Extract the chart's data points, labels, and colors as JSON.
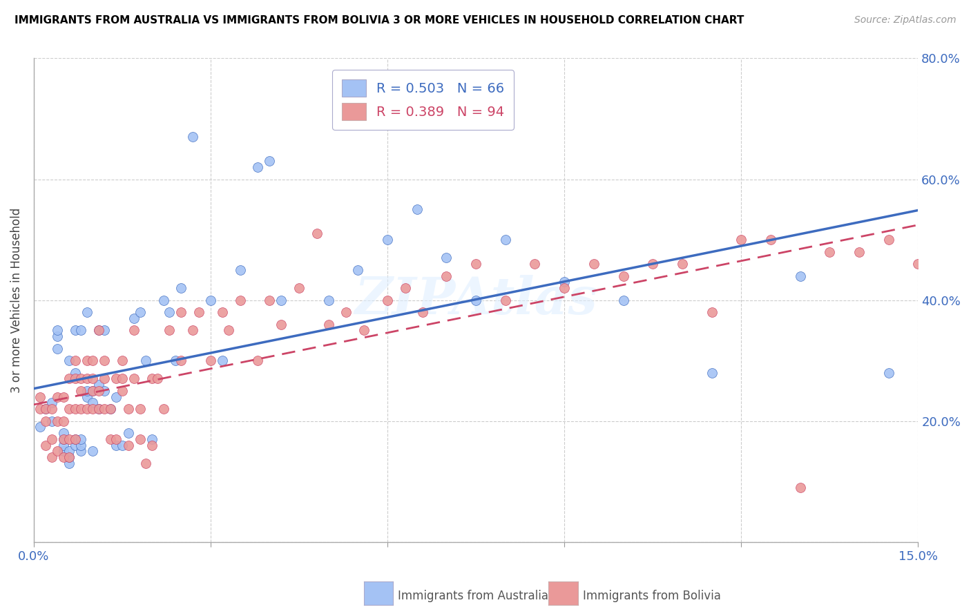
{
  "title": "IMMIGRANTS FROM AUSTRALIA VS IMMIGRANTS FROM BOLIVIA 3 OR MORE VEHICLES IN HOUSEHOLD CORRELATION CHART",
  "source": "Source: ZipAtlas.com",
  "ylabel_text": "3 or more Vehicles in Household",
  "xmin": 0.0,
  "xmax": 0.15,
  "ymin": 0.0,
  "ymax": 0.8,
  "x_ticks": [
    0.0,
    0.03,
    0.06,
    0.09,
    0.12,
    0.15
  ],
  "x_tick_labels": [
    "0.0%",
    "",
    "",
    "",
    "",
    "15.0%"
  ],
  "y_ticks": [
    0.0,
    0.2,
    0.4,
    0.6,
    0.8
  ],
  "y_tick_labels": [
    "",
    "20.0%",
    "40.0%",
    "60.0%",
    "80.0%"
  ],
  "australia_color": "#a4c2f4",
  "bolivia_color": "#ea9999",
  "regression_australia_color": "#3d6bbf",
  "regression_bolivia_color": "#cc4466",
  "legend_R_australia": "0.503",
  "legend_N_australia": "66",
  "legend_R_bolivia": "0.389",
  "legend_N_bolivia": "94",
  "watermark": "ZIPAtlas",
  "australia_x": [
    0.001,
    0.002,
    0.003,
    0.003,
    0.004,
    0.004,
    0.004,
    0.005,
    0.005,
    0.005,
    0.005,
    0.006,
    0.006,
    0.006,
    0.006,
    0.007,
    0.007,
    0.007,
    0.007,
    0.008,
    0.008,
    0.008,
    0.008,
    0.009,
    0.009,
    0.009,
    0.01,
    0.01,
    0.01,
    0.011,
    0.011,
    0.011,
    0.012,
    0.012,
    0.013,
    0.014,
    0.014,
    0.015,
    0.016,
    0.017,
    0.018,
    0.019,
    0.02,
    0.022,
    0.023,
    0.024,
    0.025,
    0.027,
    0.03,
    0.032,
    0.035,
    0.038,
    0.04,
    0.042,
    0.05,
    0.055,
    0.06,
    0.065,
    0.07,
    0.075,
    0.08,
    0.09,
    0.1,
    0.115,
    0.13,
    0.145
  ],
  "australia_y": [
    0.19,
    0.22,
    0.2,
    0.23,
    0.32,
    0.34,
    0.35,
    0.15,
    0.16,
    0.17,
    0.18,
    0.13,
    0.14,
    0.15,
    0.3,
    0.16,
    0.17,
    0.28,
    0.35,
    0.15,
    0.16,
    0.17,
    0.35,
    0.24,
    0.25,
    0.38,
    0.15,
    0.23,
    0.25,
    0.22,
    0.26,
    0.35,
    0.25,
    0.35,
    0.22,
    0.16,
    0.24,
    0.16,
    0.18,
    0.37,
    0.38,
    0.3,
    0.17,
    0.4,
    0.38,
    0.3,
    0.42,
    0.67,
    0.4,
    0.3,
    0.45,
    0.62,
    0.63,
    0.4,
    0.4,
    0.45,
    0.5,
    0.55,
    0.47,
    0.4,
    0.5,
    0.43,
    0.4,
    0.28,
    0.44,
    0.28
  ],
  "bolivia_x": [
    0.001,
    0.001,
    0.002,
    0.002,
    0.002,
    0.003,
    0.003,
    0.003,
    0.004,
    0.004,
    0.004,
    0.005,
    0.005,
    0.005,
    0.005,
    0.006,
    0.006,
    0.006,
    0.006,
    0.007,
    0.007,
    0.007,
    0.007,
    0.008,
    0.008,
    0.008,
    0.009,
    0.009,
    0.009,
    0.01,
    0.01,
    0.01,
    0.01,
    0.011,
    0.011,
    0.011,
    0.012,
    0.012,
    0.012,
    0.013,
    0.013,
    0.014,
    0.014,
    0.015,
    0.015,
    0.015,
    0.016,
    0.016,
    0.017,
    0.017,
    0.018,
    0.018,
    0.019,
    0.02,
    0.02,
    0.021,
    0.022,
    0.023,
    0.025,
    0.025,
    0.027,
    0.028,
    0.03,
    0.032,
    0.033,
    0.035,
    0.038,
    0.04,
    0.042,
    0.045,
    0.048,
    0.05,
    0.053,
    0.056,
    0.06,
    0.063,
    0.066,
    0.07,
    0.075,
    0.08,
    0.085,
    0.09,
    0.095,
    0.1,
    0.105,
    0.11,
    0.115,
    0.12,
    0.125,
    0.13,
    0.135,
    0.14,
    0.145,
    0.15
  ],
  "bolivia_y": [
    0.22,
    0.24,
    0.16,
    0.2,
    0.22,
    0.14,
    0.17,
    0.22,
    0.15,
    0.2,
    0.24,
    0.14,
    0.17,
    0.2,
    0.24,
    0.14,
    0.17,
    0.22,
    0.27,
    0.17,
    0.22,
    0.27,
    0.3,
    0.22,
    0.25,
    0.27,
    0.22,
    0.27,
    0.3,
    0.22,
    0.25,
    0.27,
    0.3,
    0.22,
    0.25,
    0.35,
    0.22,
    0.27,
    0.3,
    0.17,
    0.22,
    0.17,
    0.27,
    0.25,
    0.27,
    0.3,
    0.16,
    0.22,
    0.27,
    0.35,
    0.17,
    0.22,
    0.13,
    0.16,
    0.27,
    0.27,
    0.22,
    0.35,
    0.3,
    0.38,
    0.35,
    0.38,
    0.3,
    0.38,
    0.35,
    0.4,
    0.3,
    0.4,
    0.36,
    0.42,
    0.51,
    0.36,
    0.38,
    0.35,
    0.4,
    0.42,
    0.38,
    0.44,
    0.46,
    0.4,
    0.46,
    0.42,
    0.46,
    0.44,
    0.46,
    0.46,
    0.38,
    0.5,
    0.5,
    0.09,
    0.48,
    0.48,
    0.5,
    0.46
  ]
}
